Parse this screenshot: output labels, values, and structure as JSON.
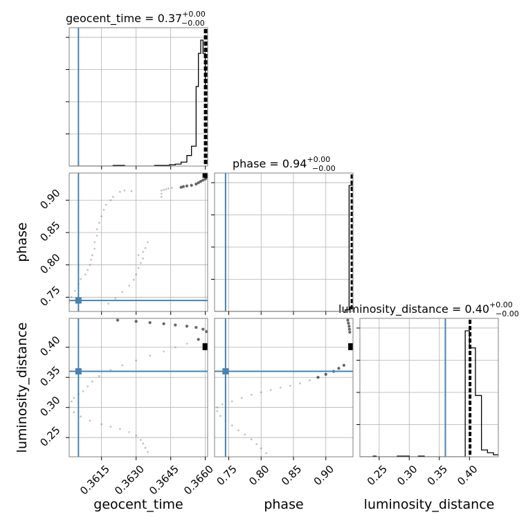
{
  "chart_data": {
    "type": "corner",
    "parameters": [
      "geocent_time",
      "phase",
      "luminosity_distance"
    ],
    "ranges": {
      "geocent_time": [
        0.3601,
        0.3661
      ],
      "phase": [
        0.728,
        0.942
      ],
      "luminosity_distance": [
        0.218,
        0.448
      ]
    },
    "ticks": {
      "geocent_time": [
        0.3615,
        0.363,
        0.3645,
        0.366
      ],
      "phase": [
        0.75,
        0.8,
        0.85,
        0.9
      ],
      "luminosity_distance": [
        0.25,
        0.3,
        0.35,
        0.4
      ]
    },
    "tick_labels": {
      "geocent_time": [
        "0.3615",
        "0.3630",
        "0.3645",
        "0.3660"
      ],
      "phase": [
        "0.75",
        "0.80",
        "0.85",
        "0.90"
      ],
      "luminosity_distance": [
        "0.25",
        "0.30",
        "0.35",
        "0.40"
      ]
    },
    "axis_labels": {
      "geocent_time": "geocent_time",
      "phase": "phase",
      "luminosity_distance": "luminosity_distance"
    },
    "titles": {
      "geocent_time": {
        "name": "geocent_time",
        "median": "0.37",
        "upper": "+0.00",
        "lower": "−0.00"
      },
      "phase": {
        "name": "phase",
        "median": "0.94",
        "upper": "+0.00",
        "lower": "−0.00"
      },
      "luminosity_distance": {
        "name": "luminosity_distance",
        "median": "0.40",
        "upper": "+0.00",
        "lower": "−0.00"
      }
    },
    "truths": {
      "geocent_time": 0.3605,
      "phase": 0.745,
      "luminosity_distance": 0.36
    },
    "quantiles": {
      "geocent_time": [
        0.36597,
        0.36603,
        0.36607
      ],
      "phase": [
        0.9395,
        0.94,
        0.9405
      ],
      "luminosity_distance": [
        0.4,
        0.401,
        0.402
      ]
    },
    "histograms": {
      "geocent_time": {
        "edges": [
          0.3601,
          0.3605,
          0.361,
          0.3615,
          0.362,
          0.3625,
          0.363,
          0.3634,
          0.3638,
          0.3642,
          0.36445,
          0.3647,
          0.36495,
          0.3652,
          0.3654,
          0.3656,
          0.3657,
          0.3658,
          0.3659,
          0.366,
          0.3661
        ],
        "counts": [
          0,
          0,
          0,
          0,
          1,
          0,
          0,
          0,
          1,
          1,
          2,
          3,
          6,
          16,
          30,
          120,
          170,
          190,
          170,
          120
        ]
      },
      "phase": {
        "edges": [
          0.728,
          0.93,
          0.936,
          0.942
        ],
        "counts": [
          0,
          3,
          230
        ]
      },
      "luminosity_distance": {
        "edges": [
          0.218,
          0.24,
          0.245,
          0.28,
          0.3,
          0.315,
          0.325,
          0.385,
          0.393,
          0.4,
          0.41,
          0.42,
          0.43,
          0.44,
          0.448
        ],
        "counts": [
          0,
          1,
          0,
          1,
          0,
          1,
          0,
          0,
          185,
          160,
          90,
          10,
          6,
          3
        ]
      }
    },
    "samples": {
      "geocent_time_vs_phase": [
        [
          0.36495,
          0.92
        ],
        [
          0.36505,
          0.921
        ],
        [
          0.3652,
          0.922
        ],
        [
          0.3654,
          0.923
        ],
        [
          0.3656,
          0.925
        ],
        [
          0.3657,
          0.927
        ],
        [
          0.3658,
          0.929
        ],
        [
          0.3659,
          0.931
        ],
        [
          0.366,
          0.933
        ],
        [
          0.36605,
          0.935
        ],
        [
          0.36455,
          0.919
        ],
        [
          0.3644,
          0.918
        ],
        [
          0.3643,
          0.917
        ],
        [
          0.3642,
          0.916
        ],
        [
          0.3641,
          0.915
        ],
        [
          0.3641,
          0.91
        ],
        [
          0.3641,
          0.905
        ],
        [
          0.3625,
          0.915
        ],
        [
          0.3628,
          0.914
        ],
        [
          0.3623,
          0.913
        ],
        [
          0.362,
          0.905
        ],
        [
          0.3619,
          0.9
        ],
        [
          0.3617,
          0.893
        ],
        [
          0.3616,
          0.885
        ],
        [
          0.3615,
          0.875
        ],
        [
          0.3614,
          0.865
        ],
        [
          0.3613,
          0.855
        ],
        [
          0.3613,
          0.845
        ],
        [
          0.3612,
          0.835
        ],
        [
          0.3612,
          0.825
        ],
        [
          0.3611,
          0.815
        ],
        [
          0.36105,
          0.808
        ],
        [
          0.361,
          0.8
        ],
        [
          0.3609,
          0.792
        ],
        [
          0.3608,
          0.785
        ],
        [
          0.3606,
          0.778
        ],
        [
          0.3605,
          0.77
        ],
        [
          0.36035,
          0.76
        ],
        [
          0.3602,
          0.75
        ],
        [
          0.3601,
          0.742
        ],
        [
          0.3618,
          0.74
        ],
        [
          0.3621,
          0.748
        ],
        [
          0.3624,
          0.758
        ],
        [
          0.3627,
          0.768
        ],
        [
          0.3629,
          0.777
        ],
        [
          0.363,
          0.785
        ],
        [
          0.3631,
          0.795
        ],
        [
          0.3632,
          0.803
        ],
        [
          0.3633,
          0.81
        ],
        [
          0.3631,
          0.815
        ],
        [
          0.3633,
          0.82
        ],
        [
          0.3634,
          0.826
        ],
        [
          0.3635,
          0.835
        ]
      ],
      "geocent_time_vs_luminosity_distance": [
        [
          0.3622,
          0.445
        ],
        [
          0.363,
          0.443
        ],
        [
          0.3636,
          0.441
        ],
        [
          0.3642,
          0.439
        ],
        [
          0.3647,
          0.437
        ],
        [
          0.3652,
          0.435
        ],
        [
          0.3656,
          0.433
        ],
        [
          0.3659,
          0.43
        ],
        [
          0.36605,
          0.426
        ],
        [
          0.3657,
          0.413
        ],
        [
          0.3652,
          0.406
        ],
        [
          0.3647,
          0.4
        ],
        [
          0.3642,
          0.393
        ],
        [
          0.3636,
          0.386
        ],
        [
          0.363,
          0.378
        ],
        [
          0.3624,
          0.37
        ],
        [
          0.3619,
          0.362
        ],
        [
          0.3614,
          0.352
        ],
        [
          0.3611,
          0.343
        ],
        [
          0.3609,
          0.335
        ],
        [
          0.3607,
          0.327
        ],
        [
          0.3605,
          0.322
        ],
        [
          0.3603,
          0.316
        ],
        [
          0.3602,
          0.31
        ],
        [
          0.3601,
          0.3
        ],
        [
          0.3603,
          0.292
        ],
        [
          0.3606,
          0.285
        ],
        [
          0.361,
          0.278
        ],
        [
          0.3615,
          0.272
        ],
        [
          0.3619,
          0.268
        ],
        [
          0.3623,
          0.264
        ],
        [
          0.3627,
          0.259
        ],
        [
          0.363,
          0.253
        ],
        [
          0.3632,
          0.246
        ],
        [
          0.3633,
          0.24
        ],
        [
          0.3634,
          0.233
        ],
        [
          0.3635,
          0.226
        ]
      ],
      "phase_vs_luminosity_distance": [
        [
          0.934,
          0.445
        ],
        [
          0.935,
          0.44
        ],
        [
          0.936,
          0.435
        ],
        [
          0.9365,
          0.43
        ],
        [
          0.937,
          0.425
        ],
        [
          0.928,
          0.37
        ],
        [
          0.92,
          0.365
        ],
        [
          0.912,
          0.36
        ],
        [
          0.9,
          0.355
        ],
        [
          0.888,
          0.35
        ],
        [
          0.875,
          0.345
        ],
        [
          0.86,
          0.34
        ],
        [
          0.845,
          0.336
        ],
        [
          0.83,
          0.333
        ],
        [
          0.815,
          0.329
        ],
        [
          0.8,
          0.325
        ],
        [
          0.785,
          0.321
        ],
        [
          0.77,
          0.316
        ],
        [
          0.755,
          0.31
        ],
        [
          0.74,
          0.305
        ],
        [
          0.732,
          0.3
        ],
        [
          0.732,
          0.294
        ],
        [
          0.737,
          0.286
        ],
        [
          0.745,
          0.278
        ],
        [
          0.755,
          0.27
        ],
        [
          0.765,
          0.262
        ],
        [
          0.775,
          0.255
        ],
        [
          0.785,
          0.247
        ],
        [
          0.793,
          0.239
        ],
        [
          0.8,
          0.232
        ],
        [
          0.808,
          0.224
        ]
      ]
    }
  }
}
